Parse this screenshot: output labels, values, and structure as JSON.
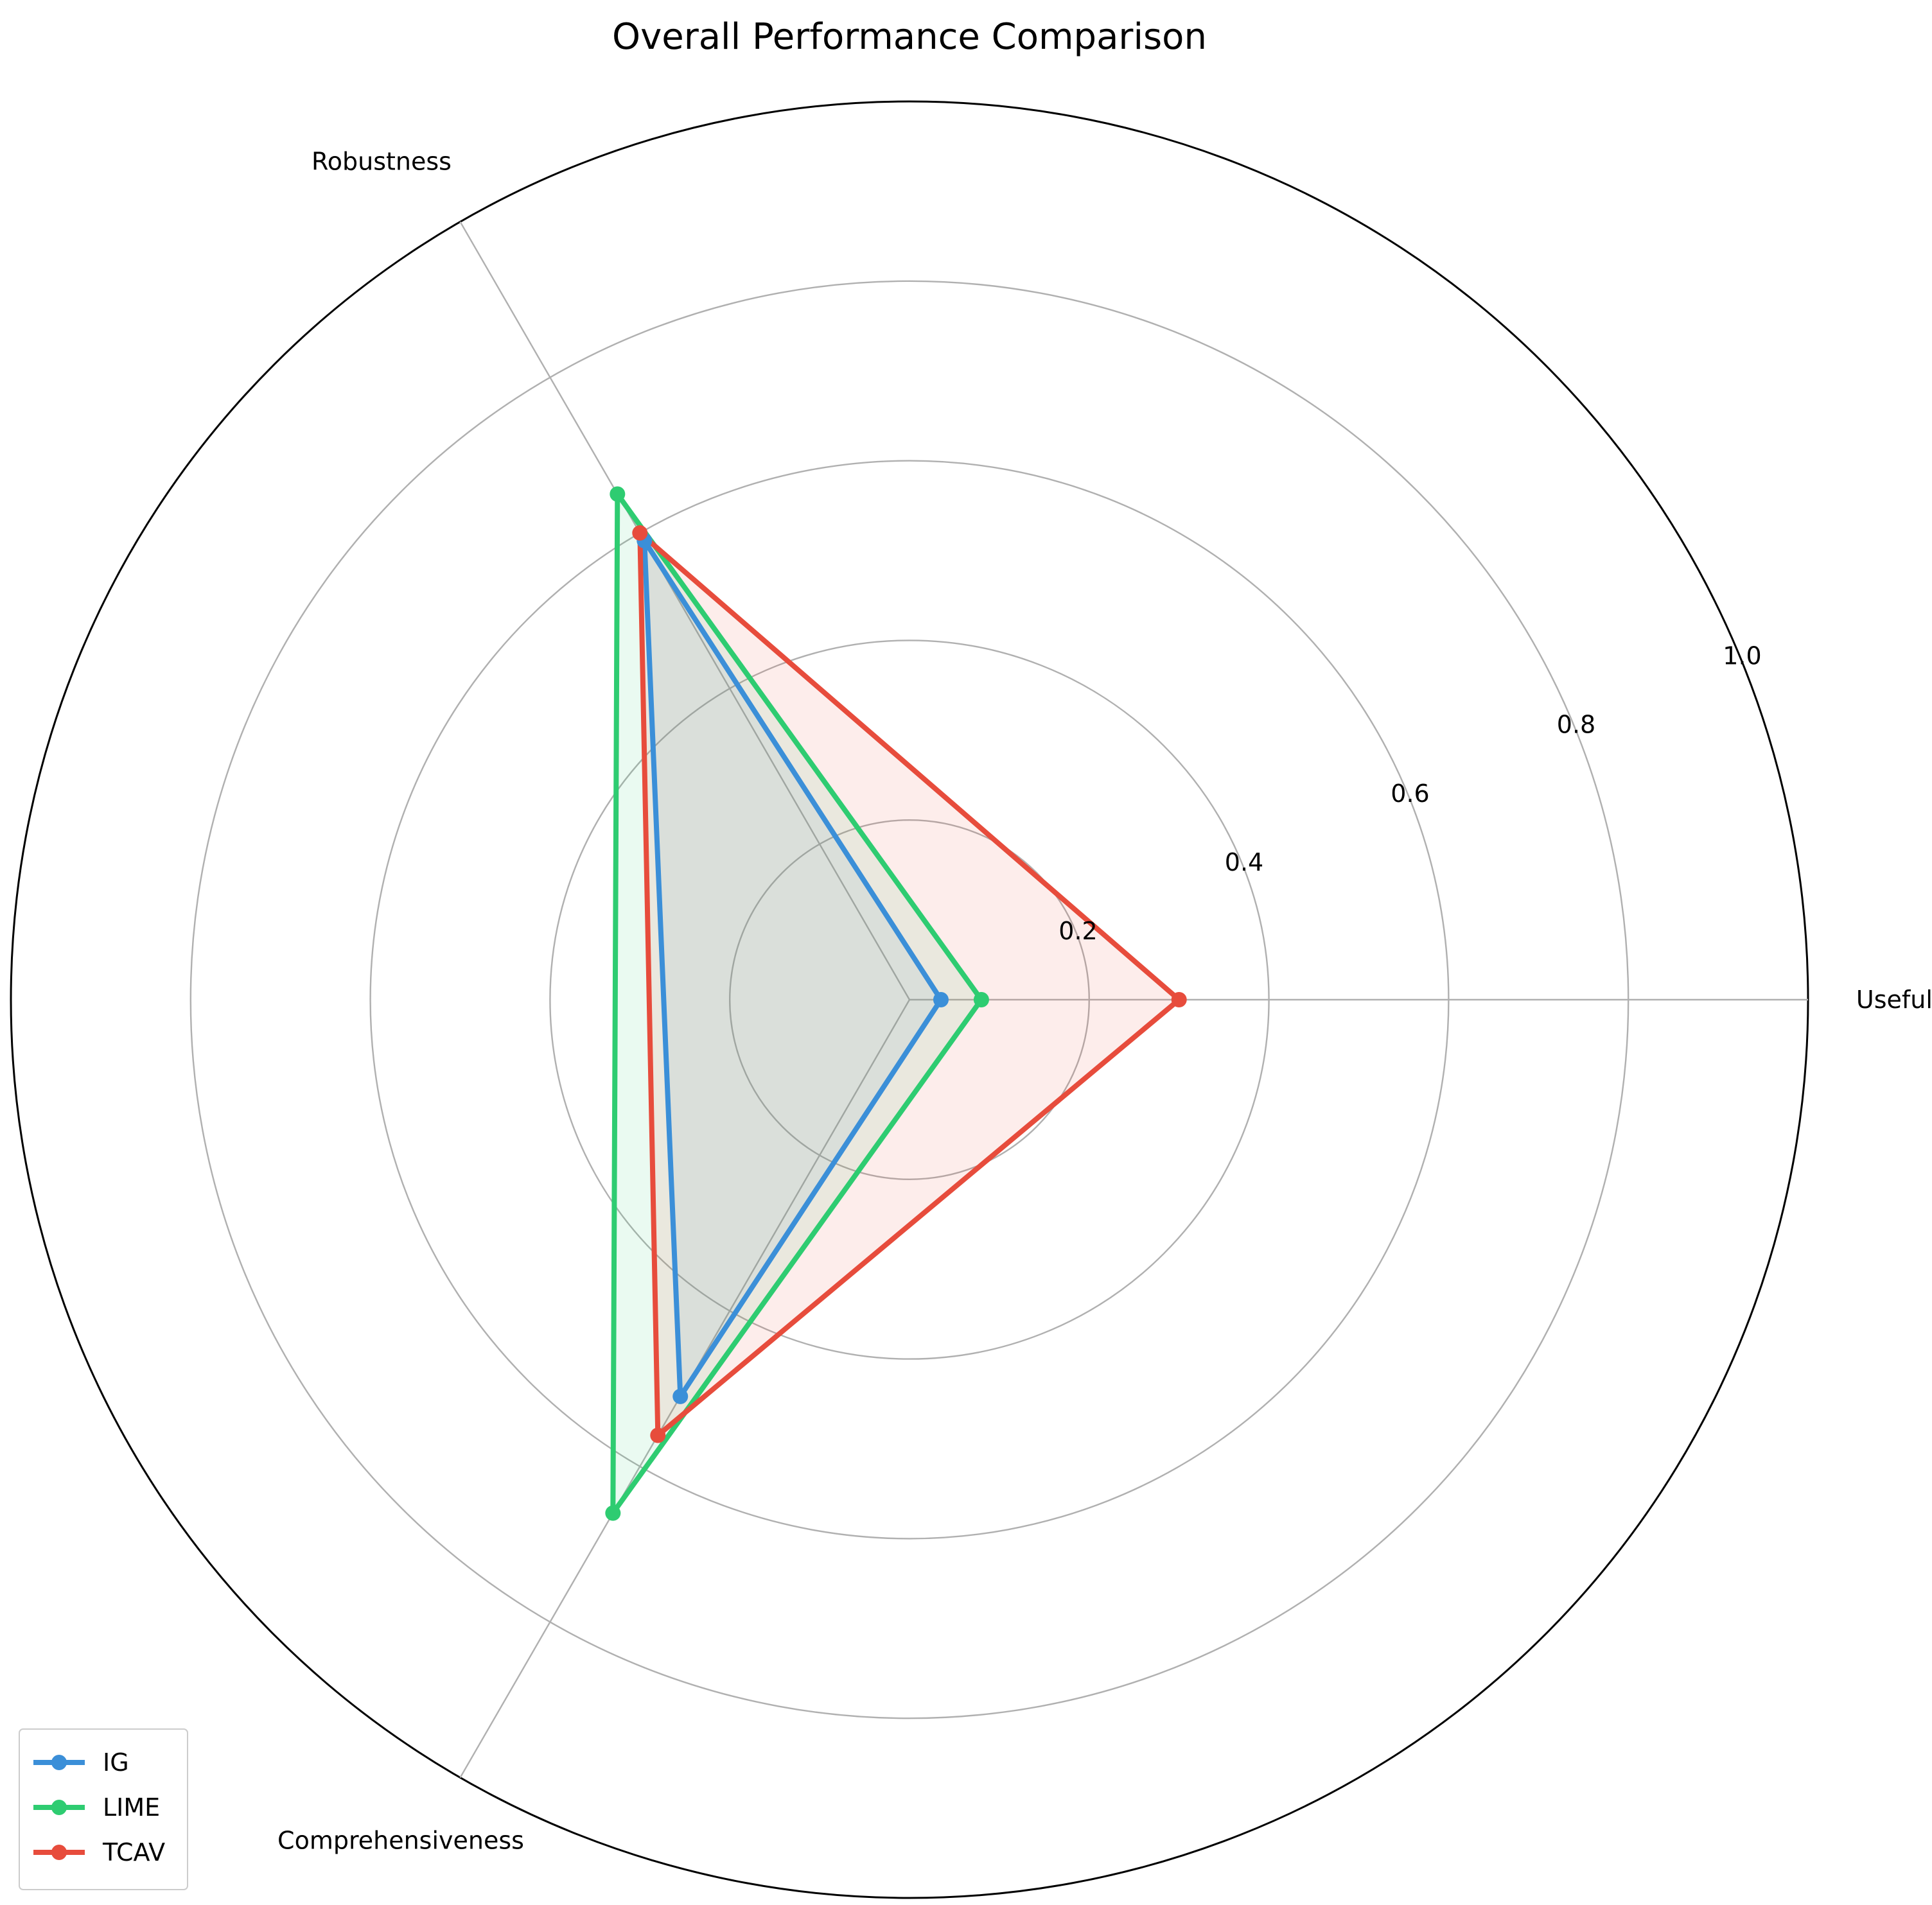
{
  "chart_data": {
    "type": "radar",
    "title": "Overall Performance Comparison",
    "axes": [
      "Usefulness",
      "Robustness",
      "Comprehensiveness"
    ],
    "rlim": [
      0,
      1.0
    ],
    "rticks": [
      0.2,
      0.4,
      0.6,
      0.8,
      1.0
    ],
    "rtick_labels": [
      "0.2",
      "0.4",
      "0.6",
      "0.8",
      "1.0"
    ],
    "grid": true,
    "legend_position": "bottom-left",
    "series": [
      {
        "name": "IG",
        "values": [
          0.035,
          0.59,
          0.51
        ],
        "color": "#3b8fd8"
      },
      {
        "name": "LIME",
        "values": [
          0.08,
          0.65,
          0.66
        ],
        "color": "#2ecc71"
      },
      {
        "name": "TCAV",
        "values": [
          0.3,
          0.6,
          0.56
        ],
        "color": "#e74c3c"
      }
    ]
  }
}
